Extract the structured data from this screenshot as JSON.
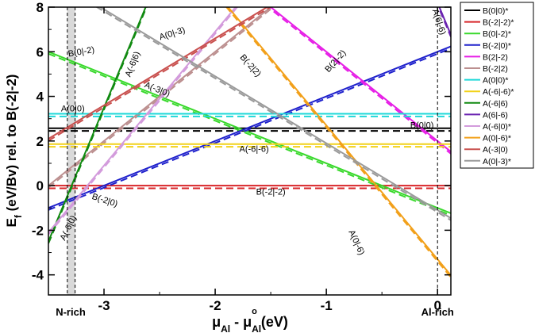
{
  "chart_data": {
    "type": "line",
    "xlabel": "μAl - μAlo (eV)",
    "xlabel_main": "μ",
    "xlabel_sub1": "Al",
    "xlabel_mid": " - μ",
    "xlabel_sub2": "Al",
    "xlabel_sup2": "o",
    "xlabel_units": " (eV)",
    "ylabel": "Ef (eV/Bv) rel. to B(-2|-2)",
    "ylabel_main": "E",
    "ylabel_sub": "f",
    "ylabel_rest": " (eV/Bv) rel. to B(-2|-2)",
    "xlim": [
      -3.5,
      0.12
    ],
    "ylim": [
      -4.9,
      8
    ],
    "xticks": [
      -3,
      -2,
      -1,
      0
    ],
    "xtick_labels": [
      "-3",
      "-2",
      "-1",
      "0"
    ],
    "yticks": [
      -4,
      -2,
      0,
      2,
      4,
      6,
      8
    ],
    "ytick_labels": [
      "-4",
      "-2",
      "0",
      "2",
      "4",
      "6",
      "8"
    ],
    "grid": false,
    "legend_position": "right",
    "region_labels": [
      {
        "text": "N-rich",
        "x": -3.3
      },
      {
        "text": "Al-rich",
        "x": 0
      }
    ],
    "shaded_band": [
      -3.33,
      -3.26
    ],
    "vertical_lines": [
      -3.33,
      -3.26,
      0
    ],
    "series": [
      {
        "name": "B(0|0)*",
        "color": "#000000",
        "dash": "solid",
        "slope": 0,
        "value_at_0": 2.57
      },
      {
        "name": "B(-2|-2)*",
        "color": "#d8262a",
        "dash": "solid",
        "slope": 0,
        "value_at_0": 0
      },
      {
        "name": "B(0|-2)*",
        "color": "#39d92c",
        "dash": "solid",
        "slope": -2,
        "value_at_0": -1.0
      },
      {
        "name": "B(-2|0)*",
        "color": "#1f21cc",
        "dash": "solid",
        "slope": 2,
        "value_at_0": 6.0
      },
      {
        "name": "B(2|-2)",
        "color": "#e61ee6",
        "dash": "solid",
        "slope": -4,
        "value_at_0": 2.0
      },
      {
        "name": "B(-2|2)",
        "color": "#bc8f8f",
        "dash": "solid",
        "slope": 4,
        "value_at_0": 14.0
      },
      {
        "name": "A(0|0)*",
        "color": "#1ed8d8",
        "dash": "solid",
        "slope": 0,
        "value_at_0": 3.22
      },
      {
        "name": "A(-6|-6)*",
        "color": "#f2d21a",
        "dash": "solid",
        "slope": 0,
        "value_at_0": 1.86
      },
      {
        "name": "A(-6|6)",
        "color": "#118a11",
        "dash": "solid",
        "slope": 12,
        "value_at_0": 39.5
      },
      {
        "name": "A(6|-6)",
        "color": "#6a23b0",
        "dash": "solid",
        "slope": -12,
        "value_at_0": 8.2
      },
      {
        "name": "A(-6|0)*",
        "color": "#d39bdc",
        "dash": "solid",
        "slope": 6,
        "value_at_0": 18.9
      },
      {
        "name": "A(0|-6)*",
        "color": "#f2a01a",
        "dash": "solid",
        "slope": -6,
        "value_at_0": -3.3
      },
      {
        "name": "A(-3|0)",
        "color": "#c9504e",
        "dash": "solid",
        "slope": 3,
        "value_at_0": 12.6
      },
      {
        "name": "A(0|-3)*",
        "color": "#9a9a9a",
        "dash": "solid",
        "slope": -3,
        "value_at_0": -1.1
      }
    ],
    "annotations": [
      {
        "text": "A(6|-6)",
        "x": -0.01,
        "y": 7.3,
        "rotate": 72
      },
      {
        "text": "A(0|-3)",
        "x": -2.38,
        "y": 6.7,
        "rotate": -17
      },
      {
        "text": "B(0|-2)",
        "x": -3.2,
        "y": 5.88,
        "rotate": -10
      },
      {
        "text": "A(-6|6)",
        "x": -2.72,
        "y": 5.4,
        "rotate": -68
      },
      {
        "text": "B(2|-2)",
        "x": -0.9,
        "y": 5.5,
        "rotate": -48
      },
      {
        "text": "B(-2|2)",
        "x": -1.7,
        "y": 5.3,
        "rotate": 48
      },
      {
        "text": "A(-3|0)",
        "x": -2.53,
        "y": 4.2,
        "rotate": 22
      },
      {
        "text": "A(0|0)",
        "x": -3.28,
        "y": 3.32,
        "rotate": 0
      },
      {
        "text": "B(0|0)",
        "x": -0.14,
        "y": 2.58,
        "rotate": 0
      },
      {
        "text": "A(-6|-6)",
        "x": -1.65,
        "y": 1.52,
        "rotate": 0
      },
      {
        "text": "B(-2|0)",
        "x": -3.0,
        "y": -0.77,
        "rotate": 18
      },
      {
        "text": "B(-2|-2)",
        "x": -1.5,
        "y": -0.4,
        "rotate": 0
      },
      {
        "text": "A(-6|0)",
        "x": -3.3,
        "y": -1.95,
        "rotate": -64
      },
      {
        "text": "A(0|-6)",
        "x": -0.75,
        "y": -2.6,
        "rotate": 65
      }
    ]
  }
}
